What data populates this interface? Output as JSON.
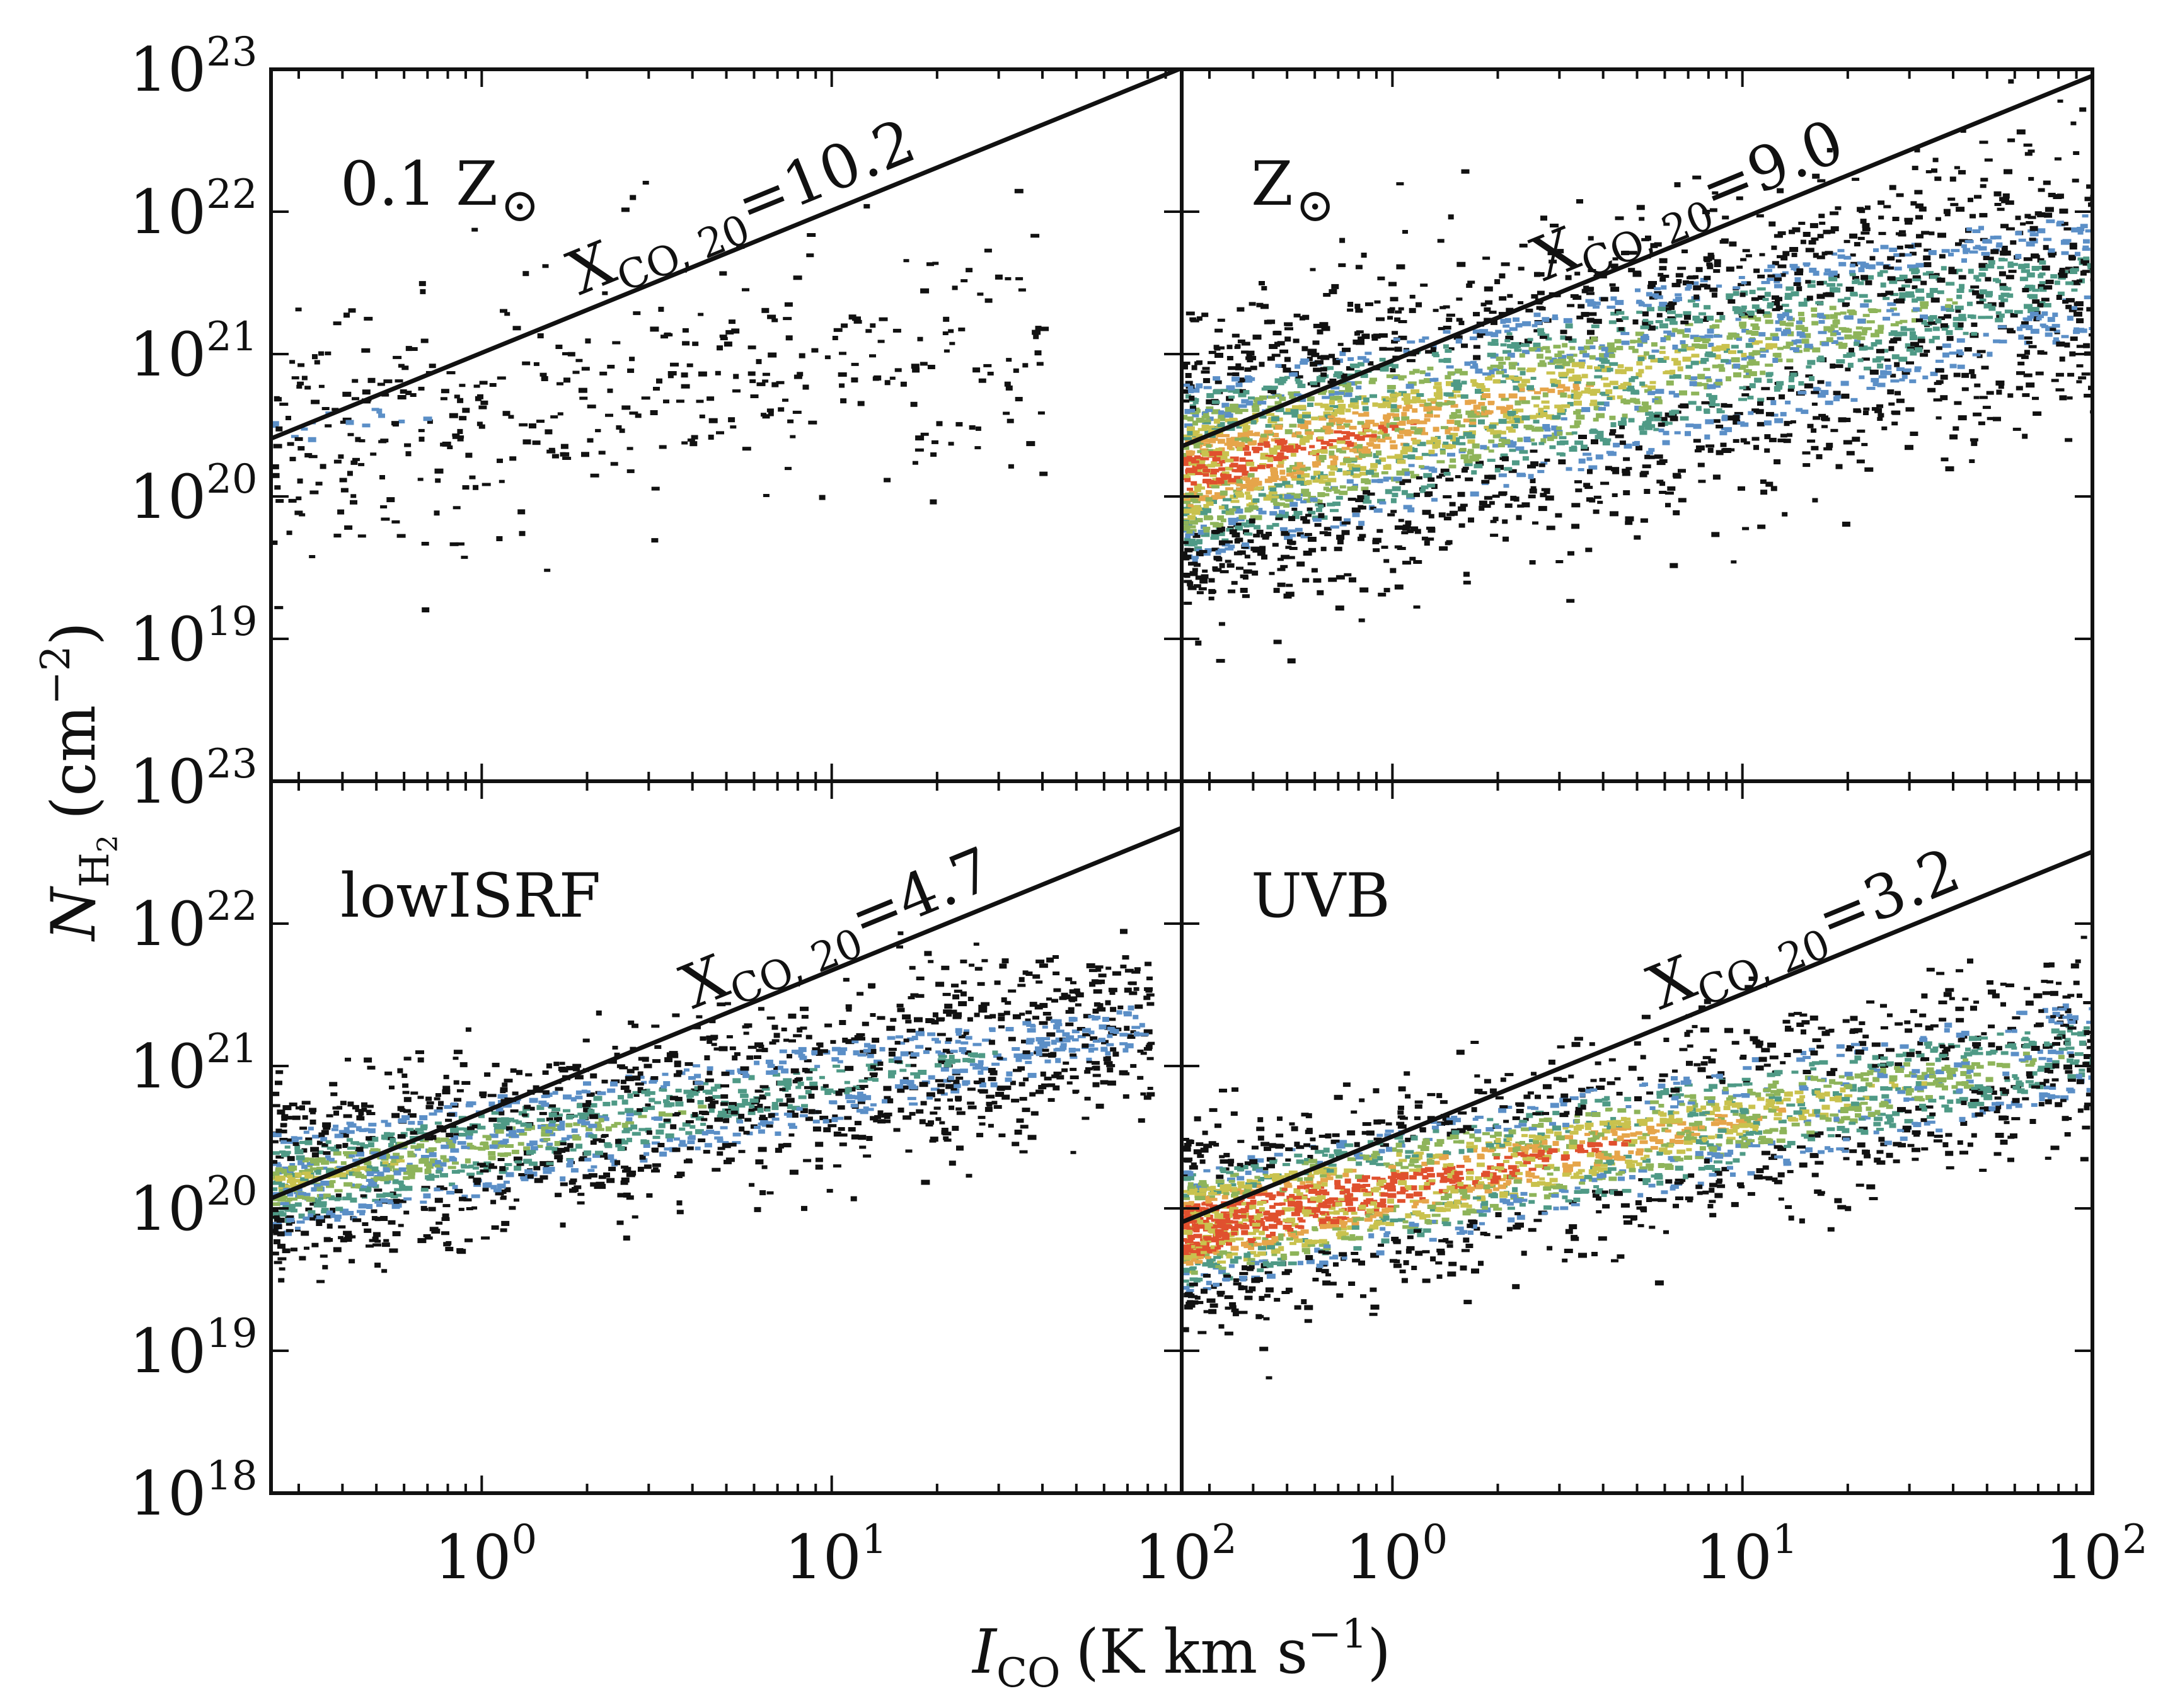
{
  "colors": {
    "ink": "#111111",
    "density": [
      "#111111",
      "#5b8fc7",
      "#4f9a86",
      "#8eb45a",
      "#c9c24e",
      "#e6a54a",
      "#e0502e"
    ]
  },
  "chart_data": {
    "type": "heatmap",
    "layout": "2x2 shared axes",
    "xlabel": "I_CO (K km s^-1)",
    "xlabel_parts": {
      "var": "I",
      "sub": "CO",
      "unit_pre": "(K km s",
      "unit_sup": "−1",
      "unit_post": ")"
    },
    "ylabel": "N_H2 (cm^-2)",
    "ylabel_parts": {
      "var": "N",
      "sub": "H",
      "subsub": "2",
      "unit_pre": "(cm",
      "unit_sup": "−2",
      "unit_post": ")"
    },
    "xscale": "log",
    "yscale": "log",
    "xlim": [
      0.25,
      100
    ],
    "ylim": [
      1e+18,
      1e+23
    ],
    "x_ticks": [
      {
        "value": 1,
        "base": "10",
        "exp": "0"
      },
      {
        "value": 10,
        "base": "10",
        "exp": "1"
      },
      {
        "value": 100,
        "base": "10",
        "exp": "2"
      }
    ],
    "y_ticks_top_row": [
      {
        "value": 1e+19,
        "base": "10",
        "exp": "19"
      },
      {
        "value": 1e+20,
        "base": "10",
        "exp": "20"
      },
      {
        "value": 1e+21,
        "base": "10",
        "exp": "21"
      },
      {
        "value": 1e+22,
        "base": "10",
        "exp": "22"
      },
      {
        "value": 1e+23,
        "base": "10",
        "exp": "23"
      }
    ],
    "y_ticks_bottom_row": [
      {
        "value": 1e+18,
        "base": "10",
        "exp": "18"
      },
      {
        "value": 1e+19,
        "base": "10",
        "exp": "19"
      },
      {
        "value": 1e+20,
        "base": "10",
        "exp": "20"
      },
      {
        "value": 1e+21,
        "base": "10",
        "exp": "21"
      },
      {
        "value": 1e+22,
        "base": "10",
        "exp": "22"
      },
      {
        "value": 1e+23,
        "base": "10",
        "exp": "23"
      }
    ],
    "panels": [
      {
        "id": "p1",
        "label": "0.1 Z",
        "label_symbol": "⊙",
        "fit_prefix": "X",
        "fit_sub": "CO, 20",
        "fit_suffix": "=10.2",
        "X_CO_20": 10.2,
        "cloud": {
          "n": 420,
          "x_range": [
            0.25,
            40
          ],
          "center_logy0": 20.65,
          "slope": 0.3,
          "spread": 0.45,
          "density": 0.15
        }
      },
      {
        "id": "p2",
        "label": "Z",
        "label_symbol": "⊙",
        "fit_prefix": "X",
        "fit_sub": "CO, 20",
        "fit_suffix": "=9.0",
        "X_CO_20": 9.0,
        "cloud": {
          "n": 3800,
          "x_range": [
            0.25,
            100
          ],
          "center_logy0": 20.5,
          "slope": 0.55,
          "spread": 0.45,
          "density": 1.0
        }
      },
      {
        "id": "p3",
        "label": "lowISRF",
        "label_symbol": "",
        "fit_prefix": "X",
        "fit_sub": "CO, 20",
        "fit_suffix": "=4.7",
        "X_CO_20": 4.7,
        "cloud": {
          "n": 2200,
          "x_range": [
            0.25,
            80
          ],
          "center_logy0": 20.45,
          "slope": 0.45,
          "spread": 0.28,
          "density": 0.6
        }
      },
      {
        "id": "p4",
        "label": "UVB",
        "label_symbol": "",
        "fit_prefix": "X",
        "fit_sub": "CO, 20",
        "fit_suffix": "=3.2",
        "X_CO_20": 3.2,
        "cloud": {
          "n": 3000,
          "x_range": [
            0.25,
            100
          ],
          "center_logy0": 20.15,
          "slope": 0.5,
          "spread": 0.3,
          "density": 1.3
        }
      }
    ]
  }
}
